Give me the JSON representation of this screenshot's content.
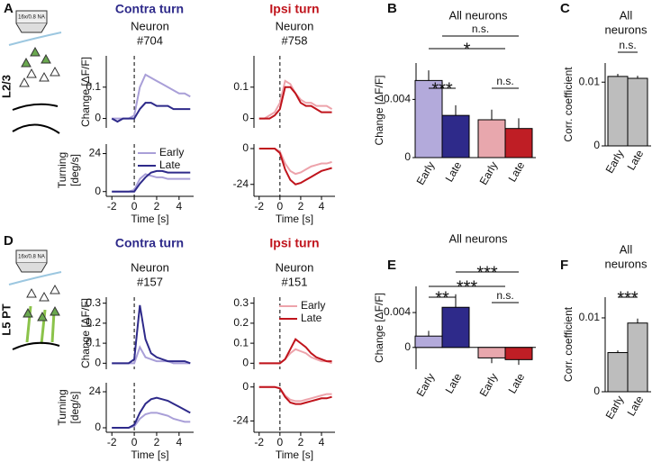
{
  "figure": {
    "panels": [
      "A",
      "B",
      "C",
      "D",
      "E",
      "F"
    ],
    "contra": "Contra turn",
    "ipsi": "Ipsi turn",
    "layers": [
      "L2/3",
      "L5 PT"
    ],
    "objective": "16x/0.8 NA"
  },
  "chart_data": [
    {
      "type": "line",
      "title": [
        "Neuron",
        "#704"
      ],
      "ylabel": "Change [ΔF/F]",
      "xlim": [
        -2.5,
        5.3
      ],
      "ylim": [
        -0.03,
        0.2
      ],
      "yticks": [
        0,
        0.1
      ],
      "x": [
        -2,
        -1.5,
        -1,
        -0.5,
        0,
        0.5,
        1,
        1.5,
        2,
        2.5,
        3,
        3.5,
        4,
        4.5,
        5
      ],
      "series": [
        {
          "name": "Early",
          "color": "#a99fd8",
          "values": [
            0,
            0,
            0,
            0,
            0.01,
            0.1,
            0.14,
            0.13,
            0.12,
            0.11,
            0.1,
            0.09,
            0.08,
            0.08,
            0.07
          ]
        },
        {
          "name": "Late",
          "color": "#2e2a8a",
          "values": [
            0,
            -0.01,
            0,
            0,
            0,
            0.03,
            0.05,
            0.05,
            0.04,
            0.04,
            0.04,
            0.03,
            0.03,
            0.03,
            0.03
          ]
        }
      ]
    },
    {
      "type": "line",
      "ylabel": [
        "Turning",
        "[deg/s]"
      ],
      "xlabel": "Time [s]",
      "legend": "upper right",
      "xlim": [
        -2.5,
        5.3
      ],
      "ylim": [
        -3,
        30
      ],
      "yticks": [
        0,
        24
      ],
      "xticks": [
        -2,
        0,
        2,
        4
      ],
      "x": [
        -2,
        -1.5,
        -1,
        -0.5,
        0,
        0.5,
        1,
        1.5,
        2,
        2.5,
        3,
        3.5,
        4,
        4.5,
        5
      ],
      "series": [
        {
          "name": "Early",
          "color": "#a99fd8",
          "values": [
            0,
            0,
            0,
            0,
            1,
            8,
            11,
            10,
            9,
            9,
            8,
            8,
            8,
            8,
            8
          ]
        },
        {
          "name": "Late",
          "color": "#2e2a8a",
          "values": [
            0,
            0,
            0,
            0,
            0,
            5,
            9,
            12,
            13,
            13,
            12,
            12,
            12,
            12,
            12
          ]
        }
      ]
    },
    {
      "type": "line",
      "title": [
        "Neuron",
        "#758"
      ],
      "xlim": [
        -2.5,
        5.3
      ],
      "ylim": [
        -0.03,
        0.2
      ],
      "yticks": [
        0,
        0.1
      ],
      "x": [
        -2,
        -1.5,
        -1,
        -0.5,
        0,
        0.5,
        1,
        1.5,
        2,
        2.5,
        3,
        3.5,
        4,
        4.5,
        5
      ],
      "series": [
        {
          "name": "Early",
          "color": "#eda3ab",
          "values": [
            0,
            0,
            0.01,
            0.02,
            0.05,
            0.12,
            0.11,
            0.08,
            0.06,
            0.05,
            0.05,
            0.04,
            0.04,
            0.04,
            0.03
          ]
        },
        {
          "name": "Late",
          "color": "#c0141c",
          "values": [
            0,
            0,
            0,
            0.01,
            0.03,
            0.1,
            0.1,
            0.08,
            0.05,
            0.04,
            0.04,
            0.03,
            0.02,
            0.02,
            0.02
          ]
        }
      ]
    },
    {
      "type": "line",
      "xlabel": "Time [s]",
      "xlim": [
        -2.5,
        5.3
      ],
      "ylim": [
        -32,
        3
      ],
      "yticks": [
        -24,
        0
      ],
      "xticks": [
        -2,
        0,
        2,
        4
      ],
      "x": [
        -2,
        -1.5,
        -1,
        -0.5,
        0,
        0.5,
        1,
        1.5,
        2,
        2.5,
        3,
        3.5,
        4,
        4.5,
        5
      ],
      "series": [
        {
          "name": "Early",
          "color": "#eda3ab",
          "values": [
            0,
            0,
            0,
            0,
            -2,
            -10,
            -15,
            -17,
            -16,
            -14,
            -12,
            -11,
            -10,
            -10,
            -9
          ]
        },
        {
          "name": "Late",
          "color": "#c0141c",
          "values": [
            0,
            0,
            0,
            0,
            -3,
            -14,
            -21,
            -24,
            -23,
            -21,
            -19,
            -17,
            -15,
            -14,
            -13
          ]
        }
      ]
    },
    {
      "type": "bar",
      "title": [
        "All neurons"
      ],
      "ylabel": "Change [ΔF/F]",
      "ylim": [
        0,
        0.0065
      ],
      "yticks": [
        0,
        0.004
      ],
      "categories": [
        "Early",
        "Late",
        "Early",
        "Late"
      ],
      "values": [
        0.0053,
        0.0029,
        0.0026,
        0.002
      ],
      "errors": [
        0.0007,
        0.0007,
        0.0007,
        0.0007
      ],
      "colors": [
        "#b3aadb",
        "#2e2a8a",
        "#e8a7ad",
        "#bf1e25"
      ],
      "annotations": [
        "***",
        "*",
        "n.s.",
        "n.s."
      ]
    },
    {
      "type": "bar",
      "title": [
        "All",
        "neurons"
      ],
      "ylabel": "Corr. coefficient",
      "ylim": [
        0,
        0.013
      ],
      "yticks": [
        0,
        0.01
      ],
      "categories": [
        "Early",
        "Late"
      ],
      "values": [
        0.0109,
        0.0106
      ],
      "errors": [
        0.0004,
        0.0004
      ],
      "colors": [
        "#bdbdbd",
        "#bdbdbd"
      ],
      "annotations": [
        "n.s."
      ]
    },
    {
      "type": "line",
      "title": [
        "Neuron",
        "#157"
      ],
      "ylabel": "Change [ΔF/F]",
      "xlim": [
        -2.5,
        5.3
      ],
      "ylim": [
        -0.03,
        0.33
      ],
      "yticks": [
        0,
        0.1,
        0.2,
        0.3
      ],
      "x": [
        -2,
        -1.5,
        -1,
        -0.5,
        0,
        0.5,
        1,
        1.5,
        2,
        2.5,
        3,
        3.5,
        4,
        4.5,
        5
      ],
      "series": [
        {
          "name": "Early",
          "color": "#a99fd8",
          "values": [
            0,
            0,
            0,
            0,
            0,
            0.08,
            0.03,
            0.02,
            0.01,
            0.01,
            0.01,
            0,
            0,
            0,
            0
          ]
        },
        {
          "name": "Late",
          "color": "#2e2a8a",
          "values": [
            0,
            0,
            0,
            0,
            0.02,
            0.29,
            0.12,
            0.05,
            0.03,
            0.02,
            0.01,
            0.01,
            0.01,
            0.01,
            0
          ]
        }
      ]
    },
    {
      "type": "line",
      "ylabel": [
        "Turning",
        "[deg/s]"
      ],
      "xlabel": "Time [s]",
      "xlim": [
        -2.5,
        5.3
      ],
      "ylim": [
        -3,
        30
      ],
      "yticks": [
        0,
        24
      ],
      "xticks": [
        -2,
        0,
        2,
        4
      ],
      "x": [
        -2,
        -1.5,
        -1,
        -0.5,
        0,
        0.5,
        1,
        1.5,
        2,
        2.5,
        3,
        3.5,
        4,
        4.5,
        5
      ],
      "series": [
        {
          "name": "Early",
          "color": "#a99fd8",
          "values": [
            0,
            0,
            0,
            0,
            1,
            6,
            9,
            10,
            10,
            9,
            8,
            6,
            5,
            4,
            4
          ]
        },
        {
          "name": "Late",
          "color": "#2e2a8a",
          "values": [
            0,
            0,
            0,
            0,
            2,
            10,
            16,
            19,
            20,
            19,
            18,
            16,
            14,
            12,
            10
          ]
        }
      ]
    },
    {
      "type": "line",
      "title": [
        "Neuron",
        "#151"
      ],
      "legend": "upper right",
      "xlim": [
        -2.5,
        5.3
      ],
      "ylim": [
        -0.03,
        0.33
      ],
      "yticks": [
        0,
        0.1,
        0.2,
        0.3
      ],
      "x": [
        -2,
        -1.5,
        -1,
        -0.5,
        0,
        0.5,
        1,
        1.5,
        2,
        2.5,
        3,
        3.5,
        4,
        4.5,
        5
      ],
      "series": [
        {
          "name": "Early",
          "color": "#eda3ab",
          "values": [
            0,
            0,
            0,
            0,
            0,
            0.02,
            0.05,
            0.07,
            0.06,
            0.05,
            0.03,
            0.02,
            0.01,
            0.01,
            0
          ]
        },
        {
          "name": "Late",
          "color": "#c0141c",
          "values": [
            0,
            0,
            0,
            0,
            0,
            0.02,
            0.07,
            0.12,
            0.1,
            0.08,
            0.05,
            0.03,
            0.02,
            0.01,
            0.01
          ]
        }
      ]
    },
    {
      "type": "line",
      "xlabel": "Time [s]",
      "xlim": [
        -2.5,
        5.3
      ],
      "ylim": [
        -32,
        3
      ],
      "yticks": [
        -24,
        0
      ],
      "xticks": [
        -2,
        0,
        2,
        4
      ],
      "x": [
        -2,
        -1.5,
        -1,
        -0.5,
        0,
        0.5,
        1,
        1.5,
        2,
        2.5,
        3,
        3.5,
        4,
        4.5,
        5
      ],
      "series": [
        {
          "name": "Early",
          "color": "#eda3ab",
          "values": [
            0,
            0,
            0,
            0,
            -1,
            -6,
            -9,
            -10,
            -10,
            -9,
            -8,
            -7,
            -6,
            -5,
            -5
          ]
        },
        {
          "name": "Late",
          "color": "#c0141c",
          "values": [
            0,
            0,
            0,
            0,
            -1,
            -7,
            -11,
            -12,
            -12,
            -11,
            -10,
            -9,
            -8,
            -8,
            -7
          ]
        }
      ]
    },
    {
      "type": "bar",
      "title": [
        "All neurons"
      ],
      "ylabel": "Change [ΔF/F]",
      "ylim": [
        -0.0025,
        0.007
      ],
      "yticks": [
        0,
        0.004
      ],
      "categories": [
        "Early",
        "Late",
        "Early",
        "Late"
      ],
      "values": [
        0.0013,
        0.0046,
        -0.0012,
        -0.0014
      ],
      "errors": [
        0.0006,
        0.0015,
        0.0006,
        0.0006
      ],
      "colors": [
        "#b3aadb",
        "#2e2a8a",
        "#e8a7ad",
        "#bf1e25"
      ],
      "annotations": [
        "**",
        "***",
        "***",
        "n.s."
      ]
    },
    {
      "type": "bar",
      "title": [
        "All",
        "neurons"
      ],
      "ylabel": "Corr. coefficient",
      "ylim": [
        0,
        0.0128
      ],
      "yticks": [
        0,
        0.01
      ],
      "categories": [
        "Early",
        "Late"
      ],
      "values": [
        0.0053,
        0.0093
      ],
      "errors": [
        0.0003,
        0.0006
      ],
      "colors": [
        "#bdbdbd",
        "#bdbdbd"
      ],
      "annotations": [
        "***"
      ]
    }
  ]
}
